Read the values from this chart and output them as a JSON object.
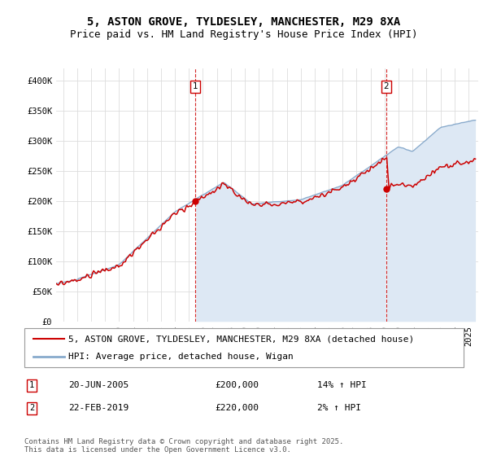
{
  "title": "5, ASTON GROVE, TYLDESLEY, MANCHESTER, M29 8XA",
  "subtitle": "Price paid vs. HM Land Registry's House Price Index (HPI)",
  "ylabel_ticks": [
    "£0",
    "£50K",
    "£100K",
    "£150K",
    "£200K",
    "£250K",
    "£300K",
    "£350K",
    "£400K"
  ],
  "ytick_values": [
    0,
    50000,
    100000,
    150000,
    200000,
    250000,
    300000,
    350000,
    400000
  ],
  "ylim": [
    0,
    420000
  ],
  "xlim_start": 1995.5,
  "xlim_end": 2025.7,
  "red_color": "#cc0000",
  "blue_line_color": "#88aacc",
  "blue_fill_color": "#dde8f4",
  "background_color": "#ffffff",
  "grid_color": "#dddddd",
  "sale1_x": 2005.47,
  "sale1_y": 200000,
  "sale2_x": 2019.12,
  "sale2_y": 220000,
  "legend_line1": "5, ASTON GROVE, TYLDESLEY, MANCHESTER, M29 8XA (detached house)",
  "legend_line2": "HPI: Average price, detached house, Wigan",
  "annot1_date": "20-JUN-2005",
  "annot1_price": "£200,000",
  "annot1_hpi": "14% ↑ HPI",
  "annot2_date": "22-FEB-2019",
  "annot2_price": "£220,000",
  "annot2_hpi": "2% ↑ HPI",
  "footer": "Contains HM Land Registry data © Crown copyright and database right 2025.\nThis data is licensed under the Open Government Licence v3.0.",
  "title_fontsize": 10,
  "subtitle_fontsize": 9,
  "tick_fontsize": 7.5,
  "legend_fontsize": 8,
  "annot_fontsize": 8
}
